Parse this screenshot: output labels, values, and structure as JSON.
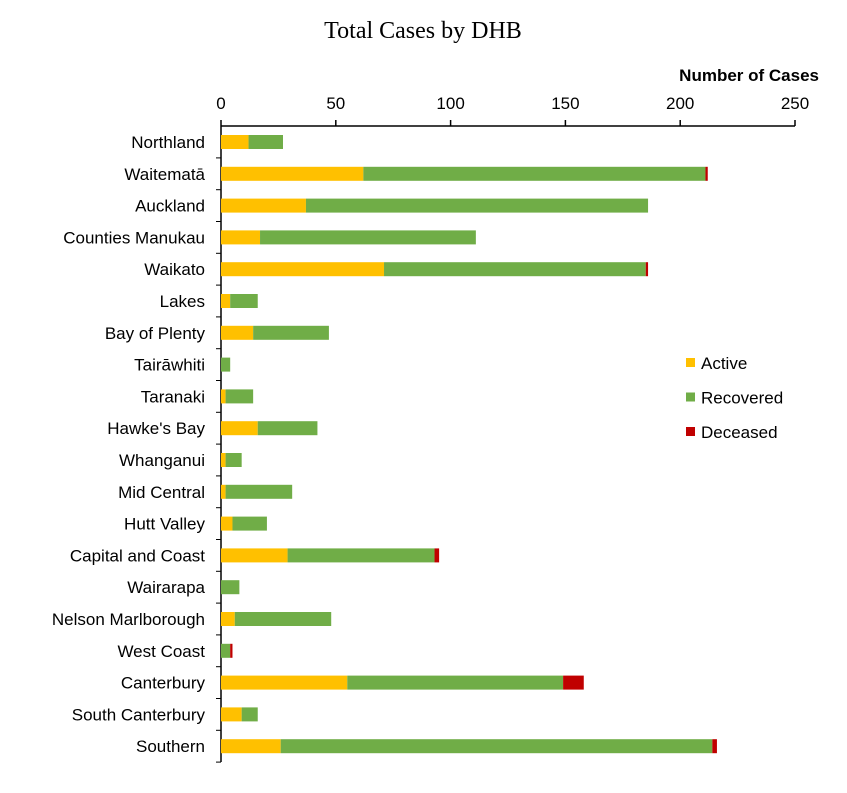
{
  "chart_data": {
    "type": "bar",
    "orientation": "horizontal",
    "stacked": true,
    "title": "Total Cases by DHB",
    "xlabel": "Number of Cases",
    "ylabel": "",
    "xlim": [
      0,
      250
    ],
    "xticks": [
      0,
      50,
      100,
      150,
      200,
      250
    ],
    "grid": false,
    "legend_position": "right",
    "categories": [
      "Northland",
      "Waitematā",
      "Auckland",
      "Counties Manukau",
      "Waikato",
      "Lakes",
      "Bay of Plenty",
      "Tairāwhiti",
      "Taranaki",
      "Hawke's Bay",
      "Whanganui",
      "Mid Central",
      "Hutt Valley",
      "Capital and Coast",
      "Wairarapa",
      "Nelson Marlborough",
      "West Coast",
      "Canterbury",
      "South Canterbury",
      "Southern"
    ],
    "series": [
      {
        "name": "Active",
        "color": "#FFC000",
        "values": [
          12,
          62,
          37,
          17,
          71,
          4,
          14,
          0,
          2,
          16,
          2,
          2,
          5,
          29,
          0,
          6,
          0,
          55,
          9,
          26
        ]
      },
      {
        "name": "Recovered",
        "color": "#70AD47",
        "values": [
          15,
          149,
          149,
          94,
          114,
          12,
          33,
          4,
          12,
          26,
          7,
          29,
          15,
          64,
          8,
          42,
          4,
          94,
          7,
          188
        ]
      },
      {
        "name": "Deceased",
        "color": "#C00000",
        "values": [
          0,
          1,
          0,
          0,
          1,
          0,
          0,
          0,
          0,
          0,
          0,
          0,
          0,
          2,
          0,
          0,
          1,
          9,
          0,
          2
        ]
      }
    ]
  }
}
